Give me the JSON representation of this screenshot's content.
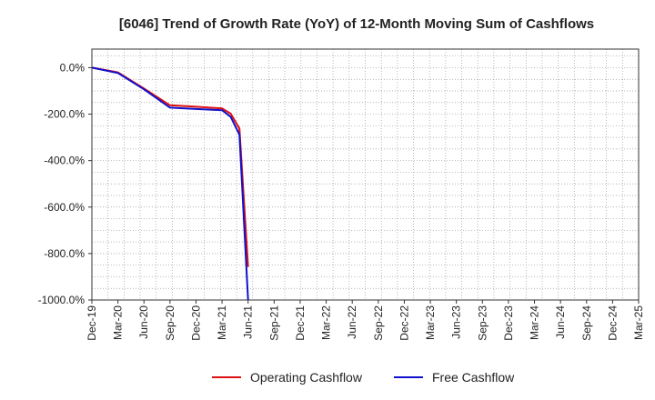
{
  "chart_data": {
    "type": "line",
    "title": "[6046]  Trend of Growth Rate (YoY) of 12-Month Moving Sum of Cashflows",
    "xlabel": "",
    "ylabel": "",
    "x_ticks": [
      "Dec-19",
      "Mar-20",
      "Jun-20",
      "Sep-20",
      "Dec-20",
      "Mar-21",
      "Jun-21",
      "Sep-21",
      "Dec-21",
      "Mar-22",
      "Jun-22",
      "Sep-22",
      "Dec-22",
      "Mar-23",
      "Jun-23",
      "Sep-23",
      "Dec-23",
      "Mar-24",
      "Jun-24",
      "Sep-24",
      "Dec-24",
      "Mar-25"
    ],
    "y_ticks": [
      "0.0%",
      "-200.0%",
      "-400.0%",
      "-600.0%",
      "-800.0%",
      "-1000.0%"
    ],
    "y_tick_values": [
      0,
      -200,
      -400,
      -600,
      -800,
      -1000
    ],
    "ylim": [
      -1000,
      80
    ],
    "grid": true,
    "legend_position": "bottom",
    "series": [
      {
        "name": "Operating Cashflow",
        "color": "#dd1111",
        "points": [
          {
            "x": "2019-12",
            "y": 0
          },
          {
            "x": "2020-03",
            "y": -20
          },
          {
            "x": "2020-06",
            "y": -90
          },
          {
            "x": "2020-09",
            "y": -162
          },
          {
            "x": "2020-12",
            "y": -168
          },
          {
            "x": "2021-03",
            "y": -175
          },
          {
            "x": "2021-04",
            "y": -198
          },
          {
            "x": "2021-05",
            "y": -262
          },
          {
            "x": "2021-06",
            "y": -858
          }
        ]
      },
      {
        "name": "Free Cashflow",
        "color": "#1111cc",
        "points": [
          {
            "x": "2019-12",
            "y": 0
          },
          {
            "x": "2020-03",
            "y": -23
          },
          {
            "x": "2020-06",
            "y": -93
          },
          {
            "x": "2020-09",
            "y": -172
          },
          {
            "x": "2020-12",
            "y": -178
          },
          {
            "x": "2021-03",
            "y": -183
          },
          {
            "x": "2021-04",
            "y": -212
          },
          {
            "x": "2021-05",
            "y": -288
          },
          {
            "x": "2021-06",
            "y": -1000
          }
        ]
      }
    ]
  }
}
